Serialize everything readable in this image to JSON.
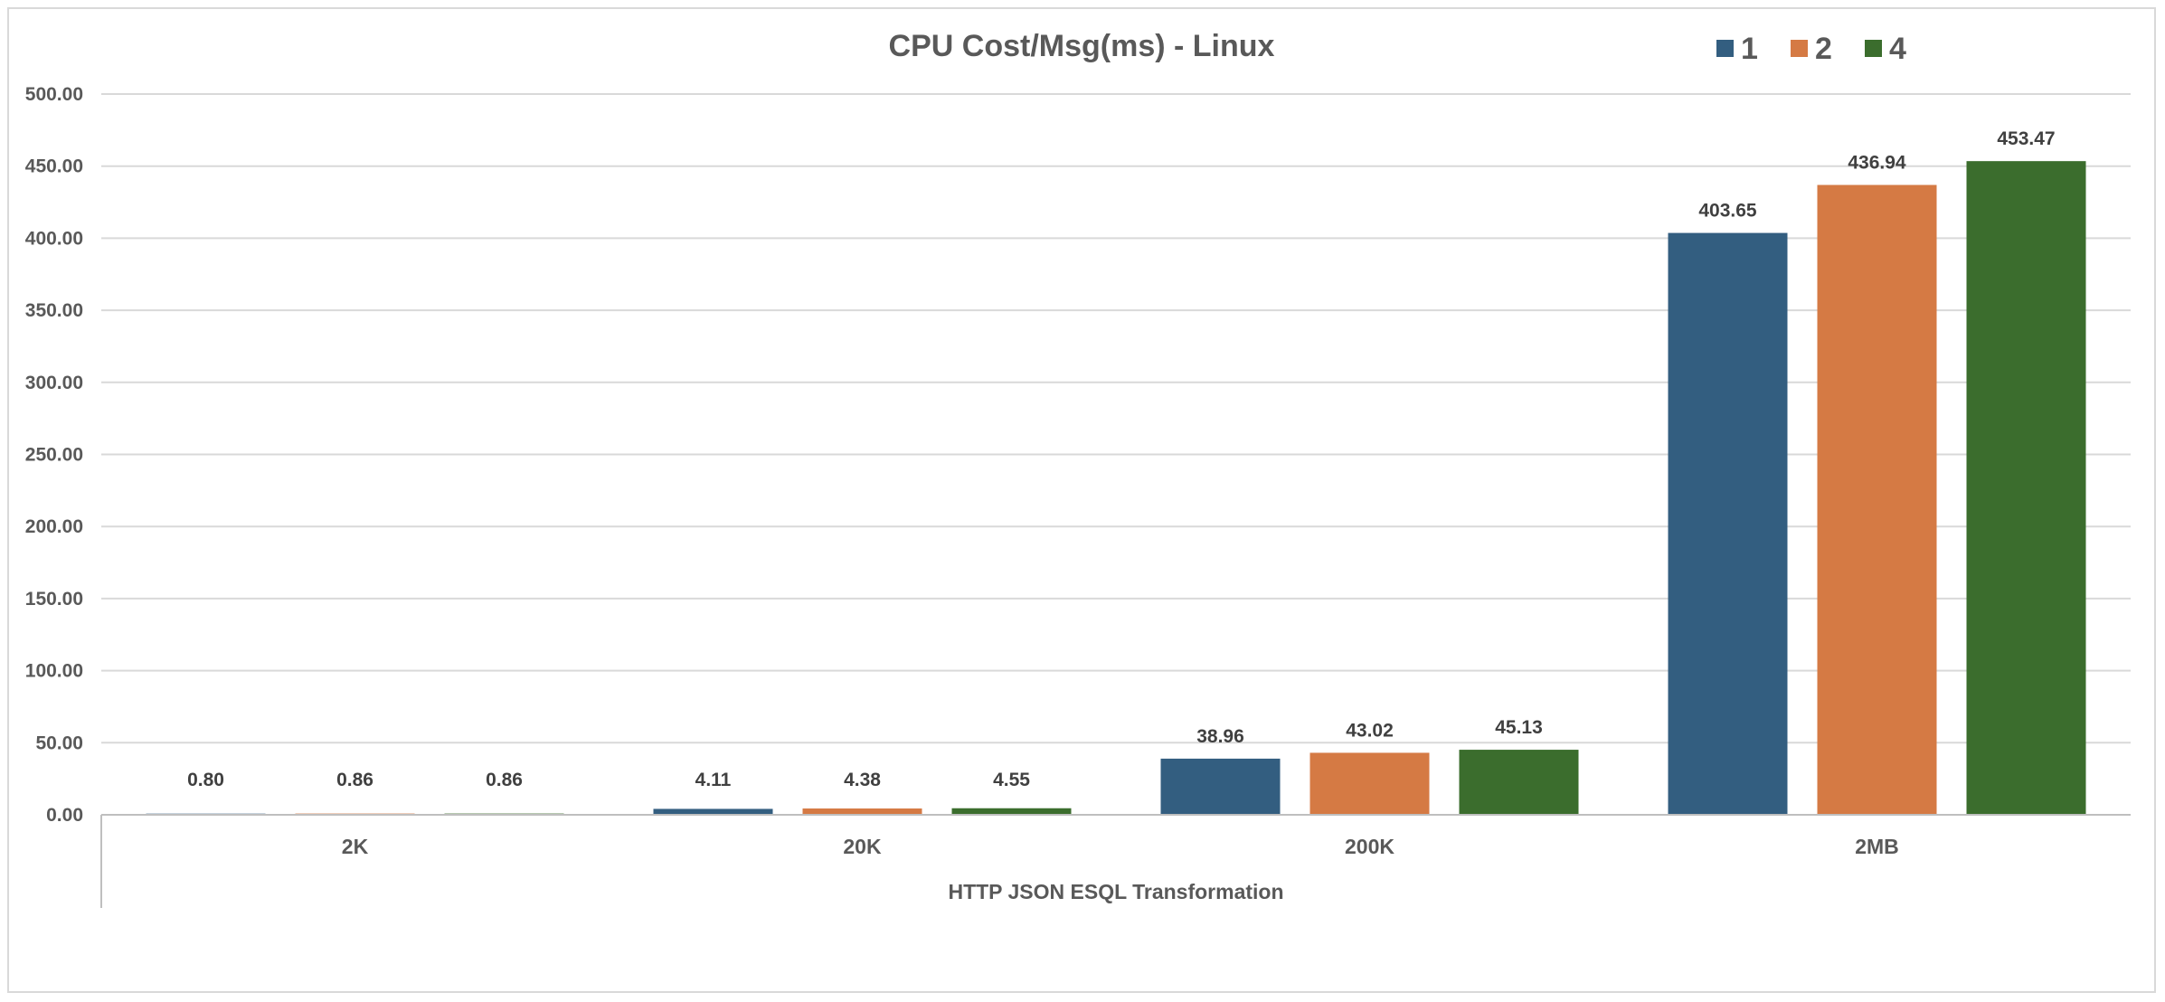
{
  "chart_data": {
    "type": "bar",
    "title": "CPU Cost/Msg(ms) - Linux",
    "categories": [
      "2K",
      "20K",
      "200K",
      "2MB"
    ],
    "category_group_label": "HTTP JSON ESQL Transformation",
    "series": [
      {
        "name": "1",
        "color": "#335e80",
        "values": [
          0.8,
          4.11,
          38.96,
          403.65
        ],
        "labels": [
          "0.80",
          "4.11",
          "38.96",
          "403.65"
        ]
      },
      {
        "name": "2",
        "color": "#d57a44",
        "values": [
          0.86,
          4.38,
          43.02,
          436.94
        ],
        "labels": [
          "0.86",
          "4.38",
          "43.02",
          "436.94"
        ]
      },
      {
        "name": "4",
        "color": "#3b6d2d",
        "values": [
          0.86,
          4.55,
          45.13,
          453.47
        ],
        "labels": [
          "0.86",
          "4.55",
          "45.13",
          "453.47"
        ]
      }
    ],
    "ylim": [
      0,
      500
    ],
    "y_ticks": [
      "0.00",
      "50.00",
      "100.00",
      "150.00",
      "200.00",
      "250.00",
      "300.00",
      "350.00",
      "400.00",
      "450.00",
      "500.00"
    ],
    "y_tick_values": [
      0,
      50,
      100,
      150,
      200,
      250,
      300,
      350,
      400,
      450,
      500
    ],
    "grid": true,
    "legend_position": "top-right",
    "gridline_color": "#d9d9d9",
    "axis_color": "#bfbfbf"
  }
}
